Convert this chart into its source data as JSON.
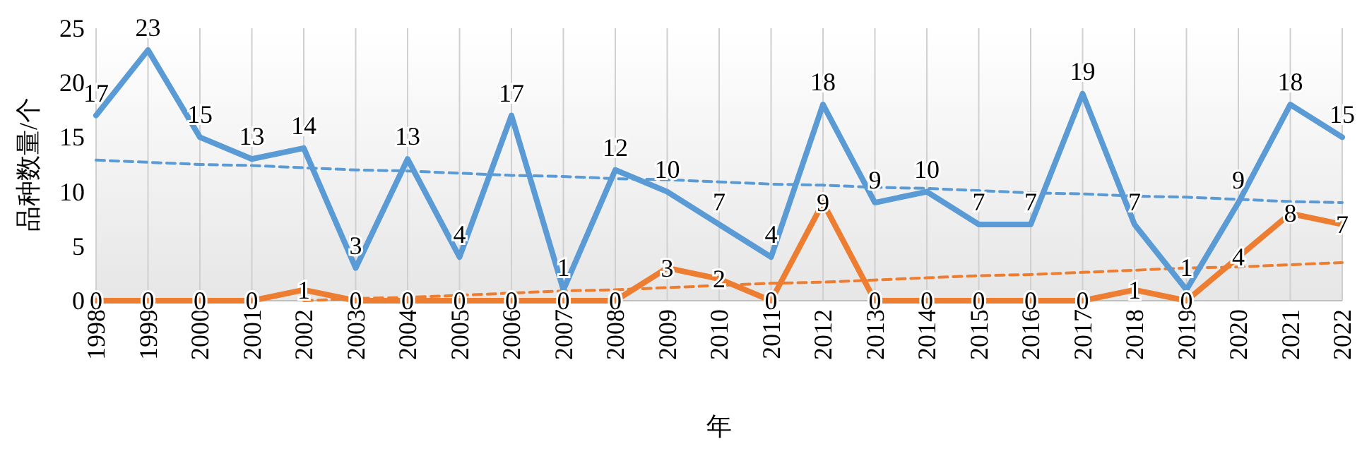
{
  "chart_data": {
    "type": "line",
    "xlabel": "年",
    "ylabel": "品种数量/个",
    "categories": [
      "1998",
      "1999",
      "2000",
      "2001",
      "2002",
      "2003",
      "2004",
      "2005",
      "2006",
      "2007",
      "2008",
      "2009",
      "2010",
      "2011",
      "2012",
      "2013",
      "2014",
      "2015",
      "2016",
      "2017",
      "2018",
      "2019",
      "2020",
      "2021",
      "2022"
    ],
    "series": [
      {
        "color": "#5b9bd5",
        "values": [
          17,
          23,
          15,
          13,
          14,
          3,
          13,
          4,
          17,
          1,
          12,
          10,
          7,
          4,
          18,
          9,
          10,
          7,
          7,
          19,
          7,
          1,
          9,
          18,
          15
        ],
        "value_labels": [
          "17",
          "23",
          "15",
          "13",
          "14",
          "3",
          "13",
          "4",
          "17",
          "1",
          "12",
          "10",
          "7",
          "4",
          "18",
          "9",
          "10",
          "7",
          "7",
          "19",
          "7",
          "1",
          "9",
          "18",
          "15"
        ]
      },
      {
        "color": "#ed7d31",
        "values": [
          0,
          0,
          0,
          0,
          1,
          0,
          0,
          0,
          0,
          0,
          0,
          3,
          2,
          0,
          9,
          0,
          0,
          0,
          0,
          0,
          1,
          0,
          4,
          8,
          7
        ],
        "value_labels": [
          "0",
          "0",
          "0",
          "0",
          "1",
          "0",
          "0",
          "0",
          "0",
          "0",
          "0",
          "3",
          "2",
          "0",
          "9",
          "0",
          "0",
          "0",
          "0",
          "0",
          "1",
          "0",
          "4",
          "8",
          "7"
        ]
      },
      {
        "type": "line",
        "color": "#5b9bd5",
        "line_style": "dashed",
        "values": [
          12.9,
          12.7,
          12.5,
          12.4,
          12.2,
          12.0,
          11.9,
          11.7,
          11.5,
          11.4,
          11.2,
          11.1,
          10.9,
          10.7,
          10.6,
          10.4,
          10.3,
          10.1,
          9.9,
          9.8,
          9.6,
          9.5,
          9.3,
          9.1,
          9.0
        ]
      },
      {
        "type": "line",
        "color": "#ed7d31",
        "line_style": "dashed",
        "values": [
          null,
          null,
          null,
          null,
          0.0,
          0.2,
          0.3,
          0.5,
          0.7,
          0.9,
          1.0,
          1.2,
          1.4,
          1.6,
          1.7,
          1.9,
          2.1,
          2.3,
          2.4,
          2.6,
          2.8,
          3.0,
          3.1,
          3.3,
          3.5
        ]
      }
    ],
    "ylim": [
      0,
      25
    ],
    "yticks": [
      0,
      5,
      10,
      15,
      20,
      25
    ],
    "grid": "x"
  }
}
